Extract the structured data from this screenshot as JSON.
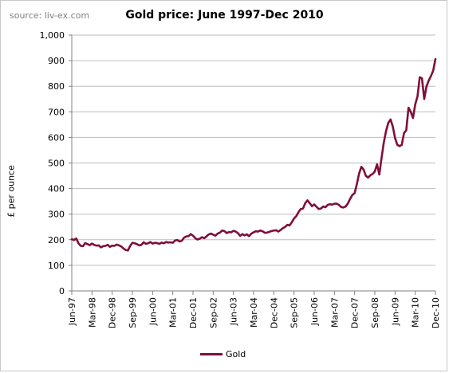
{
  "source_note": "source: liv-ex.com",
  "chart_data": {
    "type": "line",
    "title": "Gold price: June 1997-Dec 2010",
    "xlabel": "",
    "ylabel": "£ per ounce",
    "ylim": [
      0,
      1000
    ],
    "ytick_labels": [
      "0",
      "100",
      "200",
      "300",
      "400",
      "500",
      "600",
      "700",
      "800",
      "900",
      "1,000"
    ],
    "xtick_labels": [
      "Jun-97",
      "Mar-98",
      "Dec-98",
      "Sep-99",
      "Jun-00",
      "Mar-01",
      "Dec-01",
      "Sep-02",
      "Jun-03",
      "Mar-04",
      "Dec-04",
      "Sep-05",
      "Jun-06",
      "Mar-07",
      "Dec-07",
      "Sep-08",
      "Jun-09",
      "Mar-10",
      "Dec-10"
    ],
    "grid": true,
    "legend": "bottom",
    "colors": {
      "series": "#7f0f3a",
      "grid": "#bdbdbd",
      "axis": "#808080"
    },
    "series": [
      {
        "name": "Gold",
        "x": [
          "Jun-97",
          "Jul-97",
          "Aug-97",
          "Sep-97",
          "Oct-97",
          "Nov-97",
          "Dec-97",
          "Jan-98",
          "Feb-98",
          "Mar-98",
          "Apr-98",
          "May-98",
          "Jun-98",
          "Jul-98",
          "Aug-98",
          "Sep-98",
          "Oct-98",
          "Nov-98",
          "Dec-98",
          "Jan-99",
          "Feb-99",
          "Mar-99",
          "Apr-99",
          "May-99",
          "Jun-99",
          "Jul-99",
          "Aug-99",
          "Sep-99",
          "Oct-99",
          "Nov-99",
          "Dec-99",
          "Jan-00",
          "Feb-00",
          "Mar-00",
          "Apr-00",
          "May-00",
          "Jun-00",
          "Jul-00",
          "Aug-00",
          "Sep-00",
          "Oct-00",
          "Nov-00",
          "Dec-00",
          "Jan-01",
          "Feb-01",
          "Mar-01",
          "Apr-01",
          "May-01",
          "Jun-01",
          "Jul-01",
          "Aug-01",
          "Sep-01",
          "Oct-01",
          "Nov-01",
          "Dec-01",
          "Jan-02",
          "Feb-02",
          "Mar-02",
          "Apr-02",
          "May-02",
          "Jun-02",
          "Jul-02",
          "Aug-02",
          "Sep-02",
          "Oct-02",
          "Nov-02",
          "Dec-02",
          "Jan-03",
          "Feb-03",
          "Mar-03",
          "Apr-03",
          "May-03",
          "Jun-03",
          "Jul-03",
          "Aug-03",
          "Sep-03",
          "Oct-03",
          "Nov-03",
          "Dec-03",
          "Jan-04",
          "Feb-04",
          "Mar-04",
          "Apr-04",
          "May-04",
          "Jun-04",
          "Jul-04",
          "Aug-04",
          "Sep-04",
          "Oct-04",
          "Nov-04",
          "Dec-04",
          "Jan-05",
          "Feb-05",
          "Mar-05",
          "Apr-05",
          "May-05",
          "Jun-05",
          "Jul-05",
          "Aug-05",
          "Sep-05",
          "Oct-05",
          "Nov-05",
          "Dec-05",
          "Jan-06",
          "Feb-06",
          "Mar-06",
          "Apr-06",
          "May-06",
          "Jun-06",
          "Jul-06",
          "Aug-06",
          "Sep-06",
          "Oct-06",
          "Nov-06",
          "Dec-06",
          "Jan-07",
          "Feb-07",
          "Mar-07",
          "Apr-07",
          "May-07",
          "Jun-07",
          "Jul-07",
          "Aug-07",
          "Sep-07",
          "Oct-07",
          "Nov-07",
          "Dec-07",
          "Jan-08",
          "Feb-08",
          "Mar-08",
          "Apr-08",
          "May-08",
          "Jun-08",
          "Jul-08",
          "Aug-08",
          "Sep-08",
          "Oct-08",
          "Nov-08",
          "Dec-08",
          "Jan-09",
          "Feb-09",
          "Mar-09",
          "Apr-09",
          "May-09",
          "Jun-09",
          "Jul-09",
          "Aug-09",
          "Sep-09",
          "Oct-09",
          "Nov-09",
          "Dec-09",
          "Jan-10",
          "Feb-10",
          "Mar-10",
          "Apr-10",
          "May-10",
          "Jun-10",
          "Jul-10",
          "Aug-10",
          "Sep-10",
          "Oct-10",
          "Nov-10",
          "Dec-10"
        ],
        "values": [
          202,
          199,
          205,
          186,
          176,
          175,
          187,
          183,
          179,
          185,
          180,
          177,
          178,
          170,
          175,
          176,
          180,
          172,
          177,
          176,
          181,
          178,
          174,
          166,
          160,
          158,
          176,
          188,
          186,
          183,
          178,
          180,
          190,
          184,
          186,
          191,
          185,
          188,
          187,
          184,
          189,
          186,
          191,
          189,
          190,
          188,
          197,
          199,
          193,
          196,
          208,
          213,
          214,
          222,
          216,
          206,
          201,
          204,
          210,
          206,
          213,
          221,
          224,
          220,
          216,
          224,
          228,
          236,
          234,
          226,
          230,
          229,
          235,
          232,
          226,
          215,
          222,
          217,
          221,
          214,
          224,
          229,
          233,
          232,
          236,
          233,
          227,
          228,
          231,
          234,
          236,
          237,
          232,
          238,
          245,
          250,
          258,
          256,
          268,
          283,
          292,
          308,
          320,
          322,
          343,
          354,
          343,
          331,
          338,
          329,
          320,
          322,
          330,
          327,
          336,
          339,
          337,
          341,
          341,
          336,
          328,
          326,
          330,
          342,
          360,
          375,
          382,
          418,
          459,
          485,
          474,
          450,
          443,
          452,
          457,
          467,
          495,
          455,
          520,
          580,
          625,
          657,
          670,
          643,
          598,
          571,
          566,
          571,
          617,
          628,
          716,
          700,
          676,
          729,
          760,
          835,
          831,
          750,
          799,
          822,
          840,
          861,
          906
        ]
      }
    ]
  }
}
